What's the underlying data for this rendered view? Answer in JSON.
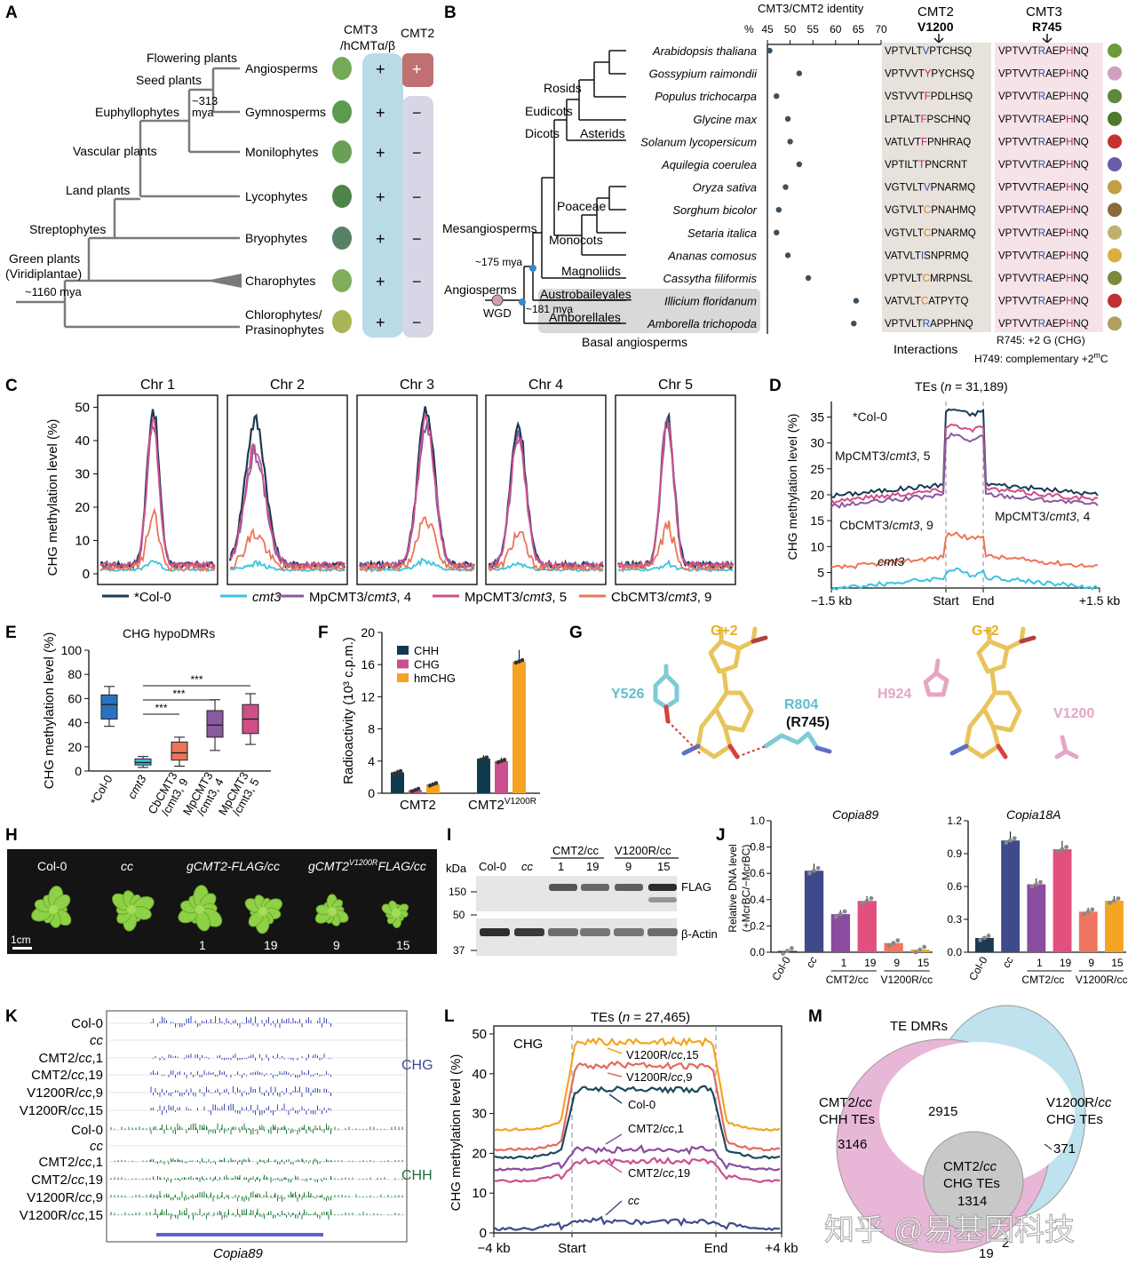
{
  "panel_labels": [
    "A",
    "B",
    "C",
    "D",
    "E",
    "F",
    "G",
    "H",
    "I",
    "J",
    "K",
    "L",
    "M"
  ],
  "A": {
    "col_headers": [
      "CMT3\n/hCMTα/β",
      "CMT2"
    ],
    "rows": [
      {
        "taxon": "Angiosperms",
        "cmt3": "+",
        "cmt2": "+"
      },
      {
        "taxon": "Gymnosperms",
        "cmt3": "+",
        "cmt2": "−"
      },
      {
        "taxon": "Monilophytes",
        "cmt3": "+",
        "cmt2": "−"
      },
      {
        "taxon": "Lycophytes",
        "cmt3": "+",
        "cmt2": "−"
      },
      {
        "taxon": "Bryophytes",
        "cmt3": "+",
        "cmt2": "−"
      },
      {
        "taxon": "Charophytes",
        "cmt3": "+",
        "cmt2": "−"
      },
      {
        "taxon": "Chlorophytes/\nPrasinophytes",
        "cmt3": "+",
        "cmt2": "−"
      }
    ],
    "clades": [
      "Flowering plants",
      "Seed plants",
      "Euphyllophytes",
      "Vascular plants",
      "Land plants",
      "Streptophytes",
      "Green plants\n(Viridiplantae)"
    ],
    "dates": [
      "~313\nmya",
      "~1160 mya"
    ],
    "colors": {
      "cmt3_box": "#b9dbe8",
      "cmt2_box": "#d6d6e6",
      "cmt2_plus": "#c07070"
    }
  },
  "B": {
    "axis_title": "CMT3/CMT2 identity",
    "axis_ticks": [
      "%",
      "45",
      "50",
      "55",
      "60",
      "65",
      "70"
    ],
    "col_cmt2": "CMT2",
    "col_cmt2_site": "V1200",
    "col_cmt3": "CMT3",
    "col_cmt3_site": "R745",
    "species": [
      {
        "name": "Arabidopsis thaliana",
        "identity": 45.5,
        "cmt2": "VPTVLTVPTCHSQ",
        "cmt3": "VPTVVTRAEPHNQ"
      },
      {
        "name": "Gossypium raimondii",
        "identity": 52,
        "cmt2": "VPTVVTYPYCHSQ",
        "cmt3": "VPTVVTRAEPHNQ"
      },
      {
        "name": "Populus trichocarpa",
        "identity": 47,
        "cmt2": "VSTVVTFPDLHSQ",
        "cmt3": "VPTVVTRAEPHNQ"
      },
      {
        "name": "Glycine max",
        "identity": 49.5,
        "cmt2": "LPTALTFPSCHNQ",
        "cmt3": "VPTVVTRAEPHNQ"
      },
      {
        "name": "Solanum lycopersicum",
        "identity": 50,
        "cmt2": "VATLVTFPNHRAQ",
        "cmt3": "VPTVVTRAEPHNQ"
      },
      {
        "name": "Aquilegia coerulea",
        "identity": 52,
        "cmt2": "VPTILTTPNCRNT",
        "cmt3": "VPTVVTRAEPHNQ"
      },
      {
        "name": "Oryza sativa",
        "identity": 49,
        "cmt2": "VGTVLTVPNARMQ",
        "cmt3": "VPTVVTRAEPHNQ"
      },
      {
        "name": "Sorghum bicolor",
        "identity": 47.5,
        "cmt2": "VGTVLTCPNAHMQ",
        "cmt3": "VPTVVTRAEPHNQ"
      },
      {
        "name": "Setaria italica",
        "identity": 47,
        "cmt2": "VGTVLTCPNARMQ",
        "cmt3": "VPTVVTRAEPHNQ"
      },
      {
        "name": "Ananas comosus",
        "identity": 49.5,
        "cmt2": "VATVLTISNPRMQ",
        "cmt3": "VPTVVTRAEPHNQ"
      },
      {
        "name": "Cassytha filiformis",
        "identity": 54,
        "cmt2": "VPTVLTCMRPNSL",
        "cmt3": "VPTVVTRAEPHNQ"
      },
      {
        "name": "Illicium floridanum",
        "identity": 64.5,
        "cmt2": "VATVLTCATPYTQ",
        "cmt3": "VPTVVTRAEPHNQ"
      },
      {
        "name": "Amborella trichopoda",
        "identity": 64,
        "cmt2": "VPTVLTRAPPHNQ",
        "cmt3": "VPTVVTRAEPHNQ"
      }
    ],
    "clades": [
      "Rosids",
      "Eudicots",
      "Dicots",
      "Asterids",
      "Poaceae",
      "Mesangiosperms",
      "Monocots",
      "Magnoliids",
      "Angiosperms",
      "Austrobaileyales",
      "Amborellales",
      "Basal angiosperms",
      "WGD"
    ],
    "dates": [
      "~175 mya",
      "~181 mya"
    ],
    "footer": [
      "Interactions",
      "R745: +2 G (CHG)",
      "H749: complementary +2"
    ],
    "footer_sup": "m",
    "footer_tail": "C"
  },
  "C": {
    "titles": [
      "Chr 1",
      "Chr 2",
      "Chr 3",
      "Chr 4",
      "Chr 5"
    ],
    "ylabel": "CHG methylation level (%)",
    "yticks": [
      "0",
      "10",
      "20",
      "30",
      "40",
      "50"
    ],
    "legend": [
      "*Col-0",
      "cmt3",
      "MpCMT3/cmt3, 4",
      "MpCMT3/cmt3, 5",
      "CbCMT3/cmt3, 9"
    ]
  },
  "D": {
    "title_pre": "TEs (",
    "title_n": "n",
    "title_post": " = 31,189)",
    "ylabel": "CHG methylation level (%)",
    "yticks": [
      "5",
      "10",
      "15",
      "20",
      "25",
      "30",
      "35"
    ],
    "xticks": [
      "−1.5 kb",
      "Start",
      "End",
      "+1.5 kb"
    ],
    "labels": [
      "*Col-0",
      "MpCMT3/cmt3, 5",
      "MpCMT3/cmt3, 4",
      "CbCMT3/cmt3, 9",
      "cmt3"
    ]
  },
  "E": {
    "title": "CHG hypoDMRs",
    "ylabel": "CHG methylation level (%)",
    "yticks": [
      "0",
      "20",
      "40",
      "60",
      "80",
      "100"
    ],
    "categories": [
      "*Col-0",
      "cmt3",
      "CbCMT3\n/cmt3, 9",
      "MpCMT3\n/cmt3, 4",
      "MpCMT3\n/cmt3, 5"
    ],
    "sig": [
      "***",
      "***",
      "***"
    ]
  },
  "F": {
    "ylabel": "Radioactivity (10³ c.p.m.)",
    "yticks": [
      "0",
      "4",
      "8",
      "12",
      "16",
      "20"
    ],
    "legend": [
      "CHH",
      "CHG",
      "hmCHG"
    ],
    "groups": [
      "CMT2",
      "CMT2"
    ],
    "group2_sup": "V1200R"
  },
  "G": {
    "labels": [
      "Y526",
      "G+2",
      "R804",
      "(R745)",
      "H924",
      "G+2",
      "V1200"
    ]
  },
  "H": {
    "labels": [
      "Col-0",
      "cc",
      "gCMT2-FLAG/cc",
      "gCMT2",
      "V1200R",
      "FLAG/cc",
      "1",
      "19",
      "9",
      "15",
      "1cm"
    ]
  },
  "I": {
    "kda": "kDa",
    "lanes": [
      "Col-0",
      "cc",
      "1",
      "19",
      "9",
      "15"
    ],
    "group_labels": [
      "CMT2/cc",
      "V1200R/cc"
    ],
    "markers": [
      "150",
      "50",
      "37"
    ],
    "bands": [
      "FLAG",
      "β-Actin"
    ]
  },
  "J": {
    "ylabel": "Relative DNA level\n(+McrBC/−McrBC)",
    "charts": [
      {
        "title": "Copia89",
        "yticks": [
          "0.0",
          "0.2",
          "0.4",
          "0.6",
          "0.8",
          "1.0"
        ]
      },
      {
        "title": "Copia18A",
        "yticks": [
          "0.0",
          "0.3",
          "0.6",
          "0.9",
          "1.2"
        ]
      }
    ],
    "xlabels": [
      "Col-0",
      "cc",
      "1",
      "19",
      "9",
      "15"
    ],
    "group_labels": [
      "CMT2/cc",
      "V1200R/cc"
    ]
  },
  "K": {
    "tracks": [
      "Col-0",
      "cc",
      "CMT2/cc,1",
      "CMT2/cc,19",
      "V1200R/cc,9",
      "V1200R/cc,15",
      "Col-0",
      "cc",
      "CMT2/cc,1",
      "CMT2/cc,19",
      "V1200R/cc,9",
      "V1200R/cc,15"
    ],
    "side": [
      "CHG",
      "CHH"
    ],
    "gene": "Copia89"
  },
  "L": {
    "title_pre": "TEs (",
    "title_n": "n",
    "title_post": " = 27,465)",
    "inner": "CHG",
    "ylabel": "CHG methylation level (%)",
    "yticks": [
      "0",
      "10",
      "20",
      "30",
      "40",
      "50"
    ],
    "xticks": [
      "−4 kb",
      "Start",
      "End",
      "+4 kb"
    ],
    "labels": [
      "V1200R/cc,15",
      "V1200R/cc,9",
      "Col-0",
      "CMT2/cc,1",
      "CMT2/cc,19",
      "cc"
    ]
  },
  "M": {
    "title": "TE DMRs",
    "sets": [
      "CMT2/cc\nCHH TEs",
      "V1200R/cc\nCHG TEs",
      "CMT2/cc\nCHG TEs"
    ],
    "counts": [
      "3146",
      "2915",
      "371",
      "1314",
      "19",
      "2"
    ],
    "colors": {
      "chh": "#e8b6d6",
      "chg": "#bfe3ee",
      "cmt2chg": "#c8c8c8"
    }
  },
  "watermark": "知乎 @易基因科技",
  "chart_data": [
    {
      "panel": "C",
      "type": "line",
      "x_label": "",
      "y_label": "CHG methylation level (%)",
      "ylim": [
        0,
        52
      ],
      "series": [
        {
          "name": "*Col-0",
          "peak_by_chr": [
            50,
            46,
            49,
            45,
            48
          ]
        },
        {
          "name": "cmt3",
          "peak_by_chr": [
            4,
            3,
            4,
            3,
            3
          ]
        },
        {
          "name": "MpCMT3/cmt3, 4",
          "peak_by_chr": [
            44,
            36,
            44,
            41,
            45
          ]
        },
        {
          "name": "MpCMT3/cmt3, 5",
          "peak_by_chr": [
            46,
            38,
            46,
            41,
            46
          ]
        },
        {
          "name": "CbCMT3/cmt3, 9",
          "peak_by_chr": [
            17,
            12,
            16,
            12,
            14
          ]
        }
      ]
    },
    {
      "panel": "D",
      "type": "line",
      "ylim": [
        2,
        38
      ],
      "series": [
        {
          "name": "*Col-0",
          "flank": 21,
          "body": 36
        },
        {
          "name": "MpCMT3/cmt3, 5",
          "flank": 20,
          "body": 33
        },
        {
          "name": "MpCMT3/cmt3, 4",
          "flank": 19,
          "body": 31
        },
        {
          "name": "CbCMT3/cmt3, 9",
          "flank": 7,
          "body": 12
        },
        {
          "name": "cmt3",
          "flank": 3,
          "body": 5
        }
      ]
    },
    {
      "panel": "E",
      "type": "box",
      "categories": [
        "*Col-0",
        "cmt3",
        "CbCMT3/cmt3, 9",
        "MpCMT3/cmt3, 4",
        "MpCMT3/cmt3, 5"
      ],
      "ylim": [
        0,
        100
      ],
      "boxes": [
        {
          "min": 37,
          "q1": 43,
          "median": 55,
          "q3": 63,
          "max": 70
        },
        {
          "min": 3,
          "q1": 5,
          "median": 7,
          "q3": 10,
          "max": 12
        },
        {
          "min": 4,
          "q1": 9,
          "median": 15,
          "q3": 24,
          "max": 28
        },
        {
          "min": 17,
          "q1": 28,
          "median": 38,
          "q3": 50,
          "max": 59
        },
        {
          "min": 22,
          "q1": 31,
          "median": 43,
          "q3": 55,
          "max": 64
        }
      ]
    },
    {
      "panel": "F",
      "type": "bar",
      "categories": [
        "CMT2",
        "CMT2V1200R"
      ],
      "ylim": [
        0,
        20
      ],
      "series": [
        {
          "name": "CHH",
          "values": [
            2.6,
            4.3
          ],
          "color": "#123a4f"
        },
        {
          "name": "CHG",
          "values": [
            0.4,
            4.0
          ],
          "color": "#c9508e"
        },
        {
          "name": "hmCHG",
          "values": [
            1.1,
            16.4
          ],
          "color": "#f4a422"
        }
      ]
    },
    {
      "panel": "J-Copia89",
      "type": "bar",
      "categories": [
        "Col-0",
        "cc",
        "1",
        "19",
        "9",
        "15"
      ],
      "ylim": [
        0,
        1.0
      ],
      "values": [
        0.01,
        0.62,
        0.29,
        0.39,
        0.07,
        0.02
      ]
    },
    {
      "panel": "J-Copia18A",
      "type": "bar",
      "categories": [
        "Col-0",
        "cc",
        "1",
        "19",
        "9",
        "15"
      ],
      "ylim": [
        0,
        1.2
      ],
      "values": [
        0.13,
        1.02,
        0.62,
        0.94,
        0.37,
        0.47
      ]
    },
    {
      "panel": "L",
      "type": "line",
      "ylim": [
        0,
        52
      ],
      "series": [
        {
          "name": "V1200R/cc,15",
          "flank": 26,
          "body": 48
        },
        {
          "name": "V1200R/cc,9",
          "flank": 21,
          "body": 42
        },
        {
          "name": "Col-0",
          "flank": 19,
          "body": 36
        },
        {
          "name": "CMT2/cc,1",
          "flank": 16,
          "body": 21
        },
        {
          "name": "CMT2/cc,19",
          "flank": 13,
          "body": 18
        },
        {
          "name": "cc",
          "flank": 1,
          "body": 3
        }
      ]
    }
  ]
}
